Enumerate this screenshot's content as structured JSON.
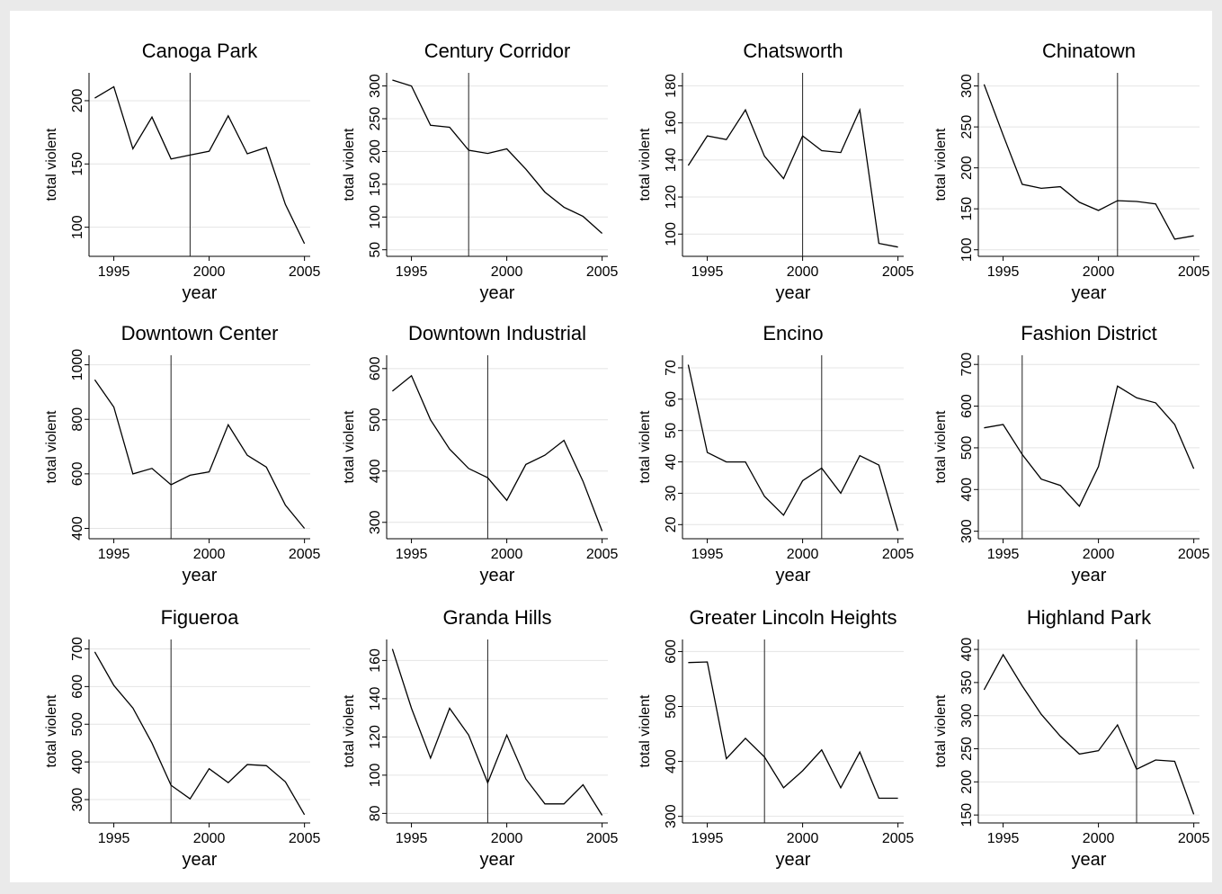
{
  "chart_data": [
    {
      "type": "line",
      "title": "Canoga Park",
      "xlabel": "year",
      "ylabel": "total violent",
      "xlim": [
        1993.7,
        2005.3
      ],
      "ylim": [
        77,
        222
      ],
      "xticks": [
        1995,
        2000,
        2005
      ],
      "yticks": [
        100,
        150,
        200
      ],
      "vline": 1999,
      "x": [
        1994,
        1995,
        1996,
        1997,
        1998,
        1999,
        2000,
        2001,
        2002,
        2003,
        2004,
        2005
      ],
      "values": [
        202,
        211,
        162,
        187,
        154,
        157,
        160,
        188,
        158,
        163,
        118,
        87
      ]
    },
    {
      "type": "line",
      "title": "Century Corridor",
      "xlabel": "year",
      "ylabel": "total violent",
      "xlim": [
        1993.7,
        2005.3
      ],
      "ylim": [
        40,
        320
      ],
      "xticks": [
        1995,
        2000,
        2005
      ],
      "yticks": [
        50,
        100,
        150,
        200,
        250,
        300
      ],
      "vline": 1998,
      "x": [
        1994,
        1995,
        1996,
        1997,
        1998,
        1999,
        2000,
        2001,
        2002,
        2003,
        2004,
        2005
      ],
      "values": [
        309,
        300,
        240,
        237,
        202,
        197,
        204,
        173,
        138,
        115,
        101,
        75
      ]
    },
    {
      "type": "line",
      "title": "Chatsworth",
      "xlabel": "year",
      "ylabel": "total violent",
      "xlim": [
        1993.7,
        2005.3
      ],
      "ylim": [
        88,
        187
      ],
      "xticks": [
        1995,
        2000,
        2005
      ],
      "yticks": [
        100,
        120,
        140,
        160,
        180
      ],
      "vline": 2000,
      "x": [
        1994,
        1995,
        1996,
        1997,
        1998,
        1999,
        2000,
        2001,
        2002,
        2003,
        2004,
        2005
      ],
      "values": [
        137,
        153,
        151,
        167,
        142,
        130,
        153,
        145,
        144,
        167,
        95,
        93
      ]
    },
    {
      "type": "line",
      "title": "Chinatown",
      "xlabel": "year",
      "ylabel": "total violent",
      "xlim": [
        1993.7,
        2005.3
      ],
      "ylim": [
        92,
        316
      ],
      "xticks": [
        1995,
        2000,
        2005
      ],
      "yticks": [
        100,
        150,
        200,
        250,
        300
      ],
      "vline": 2001,
      "x": [
        1994,
        1995,
        1996,
        1997,
        1998,
        1999,
        2000,
        2001,
        2002,
        2003,
        2004,
        2005
      ],
      "values": [
        302,
        240,
        180,
        175,
        177,
        158,
        148,
        160,
        159,
        156,
        113,
        117
      ]
    },
    {
      "type": "line",
      "title": "Downtown Center",
      "xlabel": "year",
      "ylabel": "total violent",
      "xlim": [
        1993.7,
        2005.3
      ],
      "ylim": [
        362,
        1035
      ],
      "xticks": [
        1995,
        2000,
        2005
      ],
      "yticks": [
        400,
        600,
        800,
        1000
      ],
      "vline": 1998,
      "x": [
        1994,
        1995,
        1996,
        1997,
        1998,
        1999,
        2000,
        2001,
        2002,
        2003,
        2004,
        2005
      ],
      "values": [
        945,
        845,
        600,
        620,
        560,
        595,
        607,
        780,
        668,
        625,
        485,
        400
      ]
    },
    {
      "type": "line",
      "title": "Downtown Industrial",
      "xlabel": "year",
      "ylabel": "total violent",
      "xlim": [
        1993.7,
        2005.3
      ],
      "ylim": [
        268,
        626
      ],
      "xticks": [
        1995,
        2000,
        2005
      ],
      "yticks": [
        300,
        400,
        500,
        600
      ],
      "vline": 1999,
      "x": [
        1994,
        1995,
        1996,
        1997,
        1998,
        1999,
        2000,
        2001,
        2002,
        2003,
        2004,
        2005
      ],
      "values": [
        556,
        586,
        500,
        443,
        405,
        387,
        343,
        413,
        431,
        460,
        380,
        283
      ]
    },
    {
      "type": "line",
      "title": "Encino",
      "xlabel": "year",
      "ylabel": "total violent",
      "xlim": [
        1993.7,
        2005.3
      ],
      "ylim": [
        15.5,
        74
      ],
      "xticks": [
        1995,
        2000,
        2005
      ],
      "yticks": [
        20,
        30,
        40,
        50,
        60,
        70
      ],
      "vline": 2001,
      "x": [
        1994,
        1995,
        1996,
        1997,
        1998,
        1999,
        2000,
        2001,
        2002,
        2003,
        2004,
        2005
      ],
      "values": [
        71,
        43,
        40,
        40,
        29,
        23,
        34,
        38,
        30,
        42,
        39,
        18
      ]
    },
    {
      "type": "line",
      "title": "Fashion District",
      "xlabel": "year",
      "ylabel": "total violent",
      "xlim": [
        1993.7,
        2005.3
      ],
      "ylim": [
        282,
        722
      ],
      "xticks": [
        1995,
        2000,
        2005
      ],
      "yticks": [
        300,
        400,
        500,
        600,
        700
      ],
      "vline": 1996,
      "x": [
        1994,
        1995,
        1996,
        1997,
        1998,
        1999,
        2000,
        2001,
        2002,
        2003,
        2004,
        2005
      ],
      "values": [
        548,
        556,
        484,
        425,
        410,
        360,
        455,
        648,
        620,
        608,
        556,
        450
      ]
    },
    {
      "type": "line",
      "title": "Figueroa",
      "xlabel": "year",
      "ylabel": "total violent",
      "xlim": [
        1993.7,
        2005.3
      ],
      "ylim": [
        238,
        725
      ],
      "xticks": [
        1995,
        2000,
        2005
      ],
      "yticks": [
        300,
        400,
        500,
        600,
        700
      ],
      "vline": 1998,
      "x": [
        1994,
        1995,
        1996,
        1997,
        1998,
        1999,
        2000,
        2001,
        2002,
        2003,
        2004,
        2005
      ],
      "values": [
        692,
        603,
        543,
        450,
        338,
        302,
        382,
        345,
        393,
        390,
        347,
        260
      ]
    },
    {
      "type": "line",
      "title": "Granda Hills",
      "xlabel": "year",
      "ylabel": "total violent",
      "xlim": [
        1993.7,
        2005.3
      ],
      "ylim": [
        75,
        171
      ],
      "xticks": [
        1995,
        2000,
        2005
      ],
      "yticks": [
        80,
        100,
        120,
        140,
        160
      ],
      "vline": 1999,
      "x": [
        1994,
        1995,
        1996,
        1997,
        1998,
        1999,
        2000,
        2001,
        2002,
        2003,
        2004,
        2005
      ],
      "values": [
        166,
        135,
        109,
        135,
        121,
        96,
        121,
        98,
        85,
        85,
        95,
        79
      ]
    },
    {
      "type": "line",
      "title": "Greater Lincoln Heights",
      "xlabel": "year",
      "ylabel": "total violent",
      "xlim": [
        1993.7,
        2005.3
      ],
      "ylim": [
        288,
        622
      ],
      "xticks": [
        1995,
        2000,
        2005
      ],
      "yticks": [
        300,
        400,
        500,
        600
      ],
      "vline": 1998,
      "x": [
        1994,
        1995,
        1996,
        1997,
        1998,
        1999,
        2000,
        2001,
        2002,
        2003,
        2004,
        2005
      ],
      "values": [
        580,
        581,
        405,
        442,
        408,
        352,
        383,
        421,
        352,
        417,
        333,
        333
      ]
    },
    {
      "type": "line",
      "title": "Highland Park",
      "xlabel": "year",
      "ylabel": "total violent",
      "xlim": [
        1993.7,
        2005.3
      ],
      "ylim": [
        138,
        415
      ],
      "xticks": [
        1995,
        2000,
        2005
      ],
      "yticks": [
        150,
        200,
        250,
        300,
        350,
        400
      ],
      "vline": 2002,
      "x": [
        1994,
        1995,
        1996,
        1997,
        1998,
        1999,
        2000,
        2001,
        2002,
        2003,
        2004,
        2005
      ],
      "values": [
        339,
        392,
        345,
        302,
        269,
        242,
        247,
        286,
        219,
        233,
        231,
        151
      ]
    }
  ]
}
